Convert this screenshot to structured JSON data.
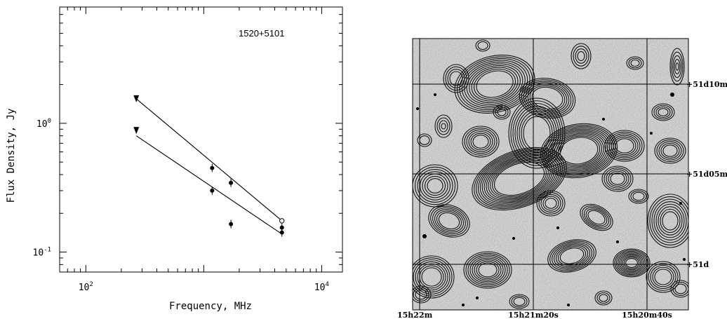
{
  "chart_data": [
    {
      "type": "scatter",
      "annotation": "1520+5101",
      "xlabel": "Frequency, MHz",
      "ylabel": "Flux Density, Jy",
      "xscale": "log",
      "yscale": "log",
      "xlim": [
        60,
        15000
      ],
      "ylim": [
        0.07,
        8
      ],
      "x_ticks": [
        {
          "value": 100,
          "base": "10",
          "exp": "2"
        },
        {
          "value": 10000,
          "base": "10",
          "exp": "4"
        }
      ],
      "y_ticks": [
        {
          "value": 1,
          "base": "10",
          "exp": "0"
        },
        {
          "value": 0.1,
          "base": "10",
          "exp": "-1"
        }
      ],
      "series": [
        {
          "points": [
            {
              "x": 268,
              "y": 1.55,
              "marker": "triangle-down"
            },
            {
              "x": 1178,
              "y": 0.45,
              "marker": "filled-circle"
            },
            {
              "x": 1700,
              "y": 0.345,
              "marker": "filled-circle"
            },
            {
              "x": 4600,
              "y": 0.175,
              "marker": "open-circle"
            }
          ],
          "fit": [
            [
              268,
              1.55
            ],
            [
              4600,
              0.175
            ]
          ]
        },
        {
          "points": [
            {
              "x": 268,
              "y": 0.88,
              "marker": "triangle-down"
            },
            {
              "x": 1178,
              "y": 0.3,
              "marker": "filled-circle"
            },
            {
              "x": 1700,
              "y": 0.165,
              "marker": "filled-circle"
            },
            {
              "x": 4600,
              "y": 0.155,
              "marker": "filled-circle"
            },
            {
              "x": 4600,
              "y": 0.142,
              "marker": "filled-circle"
            }
          ],
          "fit": [
            [
              268,
              0.8
            ],
            [
              4600,
              0.138
            ]
          ]
        }
      ]
    },
    {
      "type": "image",
      "ra_labels": [
        "15h22m",
        "15h21m20s",
        "15h20m40s"
      ],
      "dec_labels": [
        "+51d10m",
        "+51d05m",
        "+51d"
      ]
    }
  ]
}
